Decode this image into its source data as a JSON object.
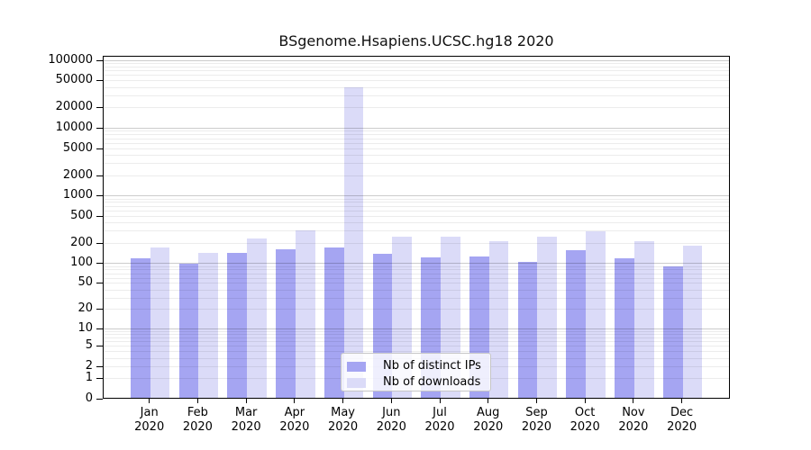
{
  "chart_data": {
    "type": "bar",
    "title": "BSgenome.Hsapiens.UCSC.hg18 2020",
    "categories": [
      "Jan",
      "Feb",
      "Mar",
      "Apr",
      "May",
      "Jun",
      "Jul",
      "Aug",
      "Sep",
      "Oct",
      "Nov",
      "Dec"
    ],
    "year_label": "2020",
    "series": [
      {
        "name": "Nb of distinct IPs",
        "color": "#a5a5f2",
        "values": [
          118,
          98,
          140,
          159,
          172,
          135,
          122,
          125,
          103,
          153,
          116,
          90
        ]
      },
      {
        "name": "Nb of downloads",
        "color": "#dbdbf8",
        "values": [
          172,
          143,
          230,
          308,
          40000,
          245,
          245,
          209,
          243,
          291,
          212,
          180
        ]
      }
    ],
    "xlabel": "",
    "ylabel": "",
    "y_ticks": [
      0,
      1,
      2,
      5,
      10,
      20,
      50,
      100,
      200,
      500,
      1000,
      2000,
      5000,
      10000,
      20000,
      50000,
      100000
    ],
    "y_scale": "log10(1+x)",
    "ylim": [
      0,
      115000
    ],
    "grid": "horizontal minor light gray, decade lines darker, drawn over bars",
    "legend_position": "bottom-center inside plot",
    "colors": {
      "axis": "#000000",
      "grid_minor": "#ececec",
      "grid_major": "#c9c9c9",
      "background": "#ffffff",
      "text": "#000000"
    }
  }
}
